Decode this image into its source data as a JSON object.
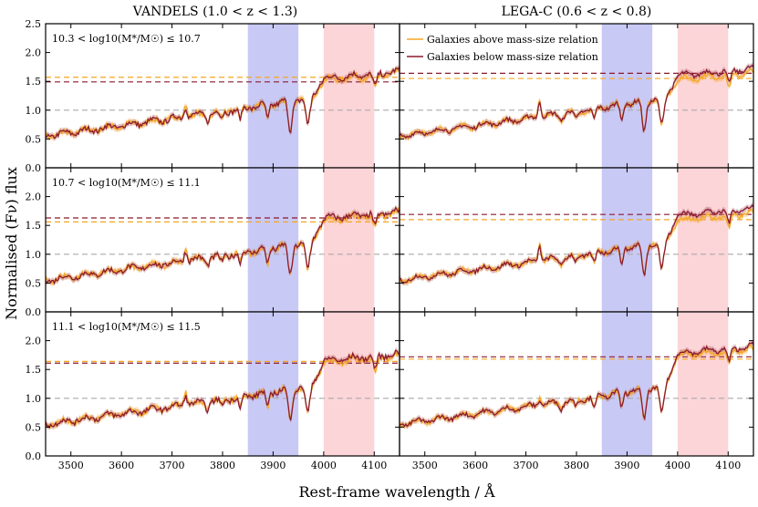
{
  "chart_data": {
    "type": "line",
    "columns": [
      {
        "title": "VANDELS (1.0 < z < 1.3)"
      },
      {
        "title": "LEGA-C (0.6 < z < 0.8)"
      }
    ],
    "rows": [
      {
        "label": "10.3 < log10(M*/M☉) ≤ 10.7"
      },
      {
        "label": "10.7 < log10(M*/M☉) ≤ 11.1"
      },
      {
        "label": "11.1 < log10(M*/M☉) ≤ 11.5"
      }
    ],
    "xlabel": "Rest-frame wavelength / Å",
    "ylabel": "Normalised (Fν) flux",
    "xlim": [
      3450,
      4150
    ],
    "ylim": [
      0,
      2.5
    ],
    "xticks": [
      "3500",
      "3600",
      "3700",
      "3800",
      "3900",
      "4000",
      "4100"
    ],
    "yticks": [
      "0.0",
      "0.5",
      "1.0",
      "1.5",
      "2.0",
      "2.5"
    ],
    "shaded_bands": [
      {
        "name": "blue band",
        "x_range": [
          3850,
          3950
        ],
        "color": "#c9c9f5"
      },
      {
        "name": "red band",
        "x_range": [
          4000,
          4100
        ],
        "color": "#fcd5d8"
      }
    ],
    "reference_level": 1.0,
    "series": [
      {
        "name": "Galaxies above mass-size relation",
        "color": "#f5a623"
      },
      {
        "name": "Galaxies below mass-size relation",
        "color": "#8b1a2e"
      }
    ],
    "red_blue_ratio_levels": [
      {
        "panel": "VANDELS row 1",
        "above": 1.57,
        "below": 1.49
      },
      {
        "panel": "LEGA-C row 1",
        "above": 1.55,
        "below": 1.64
      },
      {
        "panel": "VANDELS row 2",
        "above": 1.56,
        "below": 1.63
      },
      {
        "panel": "LEGA-C row 2",
        "above": 1.6,
        "below": 1.69
      },
      {
        "panel": "VANDELS row 3",
        "above": 1.64,
        "below": 1.61
      },
      {
        "panel": "LEGA-C row 3",
        "above": 1.68,
        "below": 1.72
      }
    ],
    "panel_levels": [
      {
        "left": 1.55,
        "right": 1.6,
        "right_shift": 0.07
      },
      {
        "left": 1.62,
        "right": 1.68,
        "right_shift": 0.09
      },
      {
        "left": 1.65,
        "right": 1.78,
        "right_shift": 0.04
      }
    ]
  }
}
